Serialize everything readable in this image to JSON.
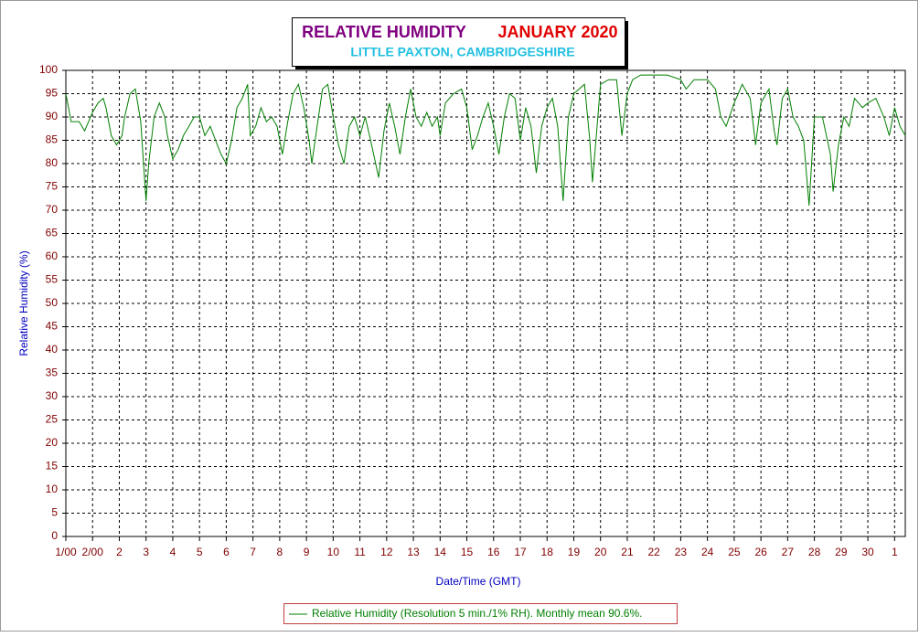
{
  "chart_data": {
    "type": "line",
    "title": "RELATIVE HUMIDITY",
    "period": "JANUARY 2020",
    "subtitle": "LITTLE PAXTON, CAMBRIDGESHIRE",
    "xlabel": "Date/Time (GMT)",
    "ylabel": "Relative Humidity (%)",
    "xlim": [
      0,
      31.4
    ],
    "ylim": [
      0,
      100
    ],
    "xticks": [
      {
        "value": 0,
        "label": "1/00"
      },
      {
        "value": 1,
        "label": "2/00"
      },
      2,
      3,
      4,
      5,
      6,
      7,
      8,
      9,
      10,
      11,
      12,
      13,
      14,
      15,
      16,
      17,
      18,
      19,
      20,
      21,
      22,
      23,
      24,
      25,
      26,
      27,
      28,
      29,
      30,
      {
        "value": 31,
        "label": "1"
      }
    ],
    "yticks": [
      0,
      5,
      10,
      15,
      20,
      25,
      30,
      35,
      40,
      45,
      50,
      55,
      60,
      65,
      70,
      75,
      80,
      85,
      90,
      95,
      100
    ],
    "grid": true,
    "series": [
      {
        "name": "Relative Humidity (Resolution 5 min./1% RH). Monthly mean 90.6%.",
        "color": "#007f00",
        "x": [
          0,
          0.2,
          0.5,
          0.7,
          1.0,
          1.2,
          1.4,
          1.5,
          1.7,
          1.9,
          2.1,
          2.2,
          2.4,
          2.6,
          2.8,
          3.0,
          3.1,
          3.3,
          3.5,
          3.7,
          3.8,
          4.0,
          4.2,
          4.4,
          4.6,
          4.8,
          5.0,
          5.2,
          5.4,
          5.6,
          5.8,
          6.0,
          6.2,
          6.4,
          6.6,
          6.8,
          6.9,
          7.1,
          7.3,
          7.5,
          7.7,
          7.9,
          8.1,
          8.3,
          8.5,
          8.7,
          8.9,
          9.1,
          9.2,
          9.4,
          9.6,
          9.8,
          10.0,
          10.2,
          10.4,
          10.6,
          10.8,
          11.0,
          11.2,
          11.4,
          11.7,
          11.9,
          12.1,
          12.3,
          12.5,
          12.7,
          12.9,
          13.1,
          13.3,
          13.5,
          13.7,
          13.9,
          14.0,
          14.2,
          14.5,
          14.8,
          15.0,
          15.2,
          15.4,
          15.6,
          15.8,
          16.0,
          16.2,
          16.4,
          16.6,
          16.8,
          17.0,
          17.2,
          17.4,
          17.6,
          17.8,
          18.0,
          18.2,
          18.4,
          18.6,
          18.8,
          19.0,
          19.2,
          19.4,
          19.6,
          19.7,
          19.9,
          20.0,
          20.3,
          20.6,
          20.8,
          21.0,
          21.2,
          21.5,
          22.0,
          22.5,
          23.0,
          23.2,
          23.5,
          24.0,
          24.3,
          24.5,
          24.7,
          25.0,
          25.3,
          25.6,
          25.8,
          26.0,
          26.3,
          26.5,
          26.6,
          26.8,
          27.0,
          27.2,
          27.4,
          27.6,
          27.8,
          28.0,
          28.3,
          28.6,
          28.7,
          28.9,
          29.1,
          29.3,
          29.5,
          29.8,
          30.0,
          30.3,
          30.6,
          30.8,
          31.0,
          31.2,
          31.4
        ],
        "values": [
          95,
          89,
          89,
          87,
          91,
          93,
          94,
          92,
          86,
          84,
          86,
          90,
          95,
          96,
          89,
          72,
          80,
          90,
          93,
          90,
          86,
          81,
          83,
          86,
          88,
          90,
          90,
          86,
          88,
          85,
          82,
          80,
          85,
          92,
          94,
          97,
          86,
          88,
          92,
          89,
          90,
          88,
          82,
          89,
          95,
          97,
          92,
          85,
          80,
          88,
          96,
          97,
          90,
          84,
          80,
          88,
          90,
          86,
          90,
          85,
          77,
          87,
          93,
          88,
          82,
          90,
          96,
          90,
          88,
          91,
          88,
          90,
          86,
          93,
          95,
          96,
          92,
          83,
          86,
          90,
          93,
          88,
          82,
          90,
          95,
          94,
          85,
          92,
          88,
          78,
          88,
          92,
          94,
          88,
          72,
          90,
          95,
          96,
          97,
          85,
          76,
          90,
          97,
          98,
          98,
          86,
          95,
          98,
          99,
          99,
          99,
          98,
          96,
          98,
          98,
          96,
          90,
          88,
          93,
          97,
          94,
          84,
          93,
          96,
          87,
          84,
          94,
          96,
          90,
          88,
          85,
          71,
          90,
          90,
          82,
          74,
          84,
          90,
          88,
          94,
          92,
          93,
          94,
          90,
          86,
          92,
          88,
          86
        ]
      }
    ]
  }
}
